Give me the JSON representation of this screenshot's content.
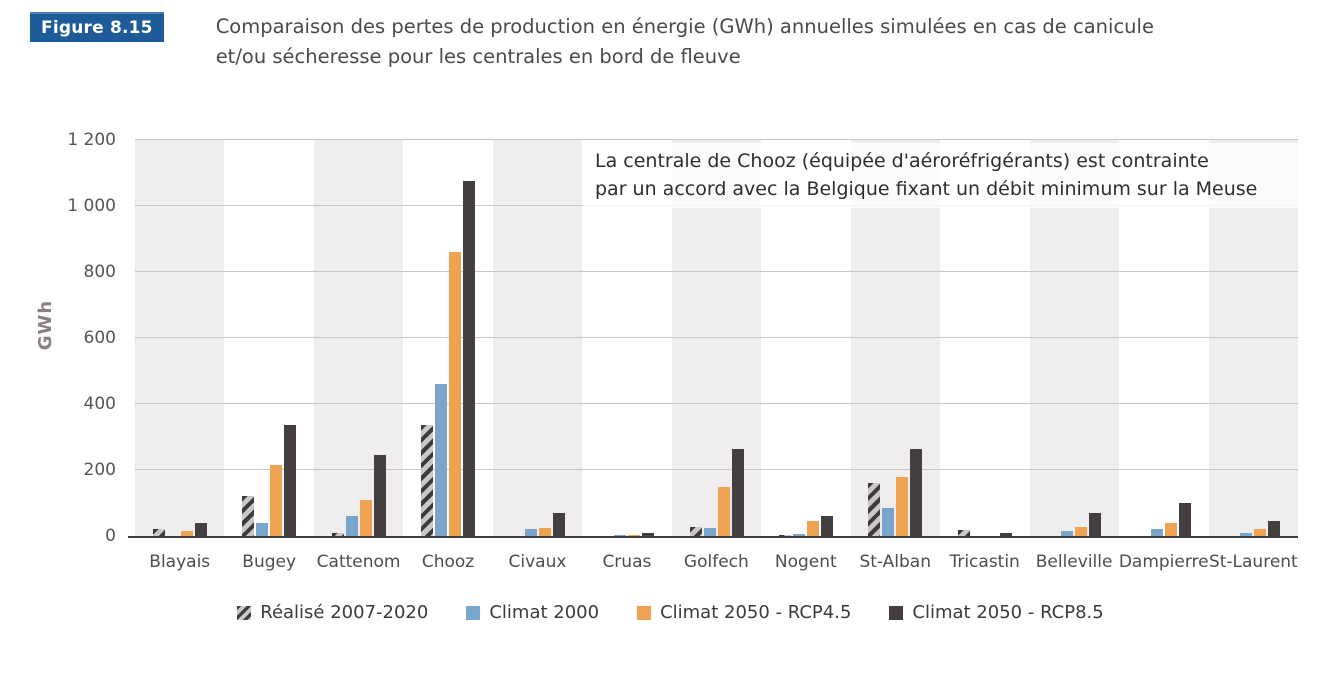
{
  "header": {
    "figure_label": "Figure 8.15",
    "title_line1": "Comparaison des pertes de production en énergie (GWh) annuelles simulées en cas de canicule",
    "title_line2": "et/ou sécheresse pour les centrales en bord de fleuve"
  },
  "annotation": {
    "line1": "La centrale de Chooz (équipée d'aéroréfrigérants) est contrainte",
    "line2": "par un accord avec la Belgique fixant un débit minimum sur la Meuse"
  },
  "colors": {
    "badge_bg": "#1d5c99",
    "badge_text": "#ffffff",
    "band_shade": "#efeded",
    "gridline": "#c9c7c8",
    "axis_line": "#3f3f3f",
    "hatch_bg": "#c9c7c8",
    "hatch_stripe": "#3e3a3b"
  },
  "chart_data": {
    "type": "bar",
    "title": "Comparaison des pertes de production en énergie (GWh) annuelles simulées en cas de canicule et/ou sécheresse pour les centrales en bord de fleuve",
    "xlabel": "",
    "ylabel": "GWh",
    "ylim": [
      0,
      1200
    ],
    "ytick_values": [
      0,
      200,
      400,
      600,
      800,
      1000,
      1200
    ],
    "ytick_labels": [
      "0",
      "200",
      "400",
      "600",
      "800",
      "1 000",
      "1 200"
    ],
    "grid": true,
    "legend_position": "bottom",
    "categories": [
      "Blayais",
      "Bugey",
      "Cattenom",
      "Chooz",
      "Civaux",
      "Cruas",
      "Golfech",
      "Nogent",
      "St-Alban",
      "Tricastin",
      "Belleville",
      "Dampierre",
      "St-Laurent"
    ],
    "series": [
      {
        "name": "Réalisé 2007-2020",
        "style": "hatched",
        "color": "#c9c7c8",
        "values": [
          20,
          120,
          8,
          335,
          0,
          0,
          28,
          3,
          160,
          18,
          0,
          0,
          0
        ]
      },
      {
        "name": "Climat 2000",
        "style": "solid",
        "color": "#7aa6cd",
        "values": [
          0,
          40,
          60,
          460,
          20,
          2,
          25,
          5,
          85,
          0,
          15,
          20,
          10
        ]
      },
      {
        "name": "Climat 2050 - RCP4.5",
        "style": "solid",
        "color": "#efa252",
        "values": [
          15,
          215,
          110,
          860,
          25,
          4,
          150,
          45,
          180,
          0,
          28,
          38,
          20
        ]
      },
      {
        "name": "Climat 2050 - RCP8.5",
        "style": "solid",
        "color": "#443e3f",
        "values": [
          40,
          335,
          245,
          1075,
          70,
          10,
          265,
          60,
          265,
          8,
          70,
          100,
          45
        ]
      }
    ],
    "annotation": "La centrale de Chooz (équipée d'aéroréfrigérants) est contrainte par un accord avec la Belgique fixant un débit minimum sur la Meuse"
  }
}
